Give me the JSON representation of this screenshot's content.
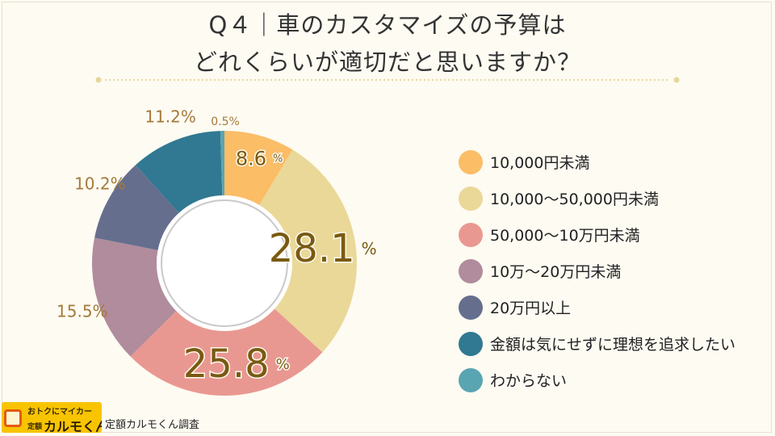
{
  "title": {
    "line1": "Q４｜車のカスタマイズの予算は",
    "line2": "どれくらいが適切だと思いますか？"
  },
  "chart_data": {
    "type": "pie",
    "title": "Q４｜車のカスタマイズの予算は どれくらいが適切だと思いますか？",
    "donut": true,
    "categories": [
      "10,000円未満",
      "10,000〜50,000円未満",
      "50,000〜10万円未満",
      "10万〜20万円未満",
      "20万円以上",
      "金額は気にせずに理想を追求したい",
      "わからない"
    ],
    "values": [
      8.6,
      28.1,
      25.8,
      15.5,
      10.2,
      11.2,
      0.5
    ],
    "value_labels": [
      "8.6",
      "28.1",
      "25.8",
      "15.5%",
      "10.2%",
      "11.2%",
      "0.5%"
    ],
    "unit": "%",
    "colors": [
      "#fbbd66",
      "#ead898",
      "#e99891",
      "#b08c9c",
      "#666e8e",
      "#317892",
      "#5aa5b2"
    ],
    "legend_position": "right"
  },
  "footer": {
    "logo_tagline": "おトクにマイカー",
    "logo_small": "定額",
    "logo_name": "カルモくん",
    "source": "定額カルモくん調査"
  }
}
